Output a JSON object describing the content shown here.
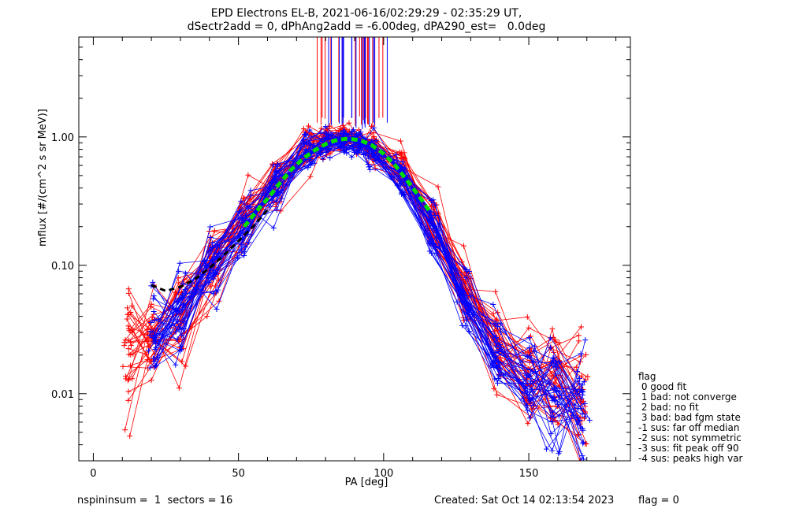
{
  "header": {
    "title_line1": "EPD Electrons EL-B, 2021-06-16/02:29:29 - 02:35:29 UT,",
    "title_line2": "dSectr2add = 0, dPhAng2add = -6.00deg, dPA290_est=   0.0deg"
  },
  "footer": {
    "left": "nspininsum =  1  sectors = 16",
    "created": "Created: Sat Oct 14 02:13:54 2023",
    "flag": "flag = 0"
  },
  "legend": {
    "title": "flag",
    "items": [
      " 0 good fit",
      " 1 bad: not converge",
      " 2 bad: no fit",
      " 3 bad: bad fgm state",
      "-1 sus: far off median",
      "-2 sus: not symmetric",
      "-3 sus: fit peak off 90",
      "-4 sus: peaks high var"
    ]
  },
  "colors": {
    "series_a": "#ff0000",
    "series_b": "#0000ff",
    "fit_median": "#00dd00",
    "fit_dashed": "#000000"
  },
  "chart_data": {
    "type": "line",
    "xlabel": "PA [deg]",
    "ylabel": "mflux [#/(cm^2 s sr MeV)]",
    "xlim": [
      -5,
      185
    ],
    "ylim": [
      0.003,
      6
    ],
    "yscale": "log",
    "xticks": [
      0,
      50,
      100,
      150
    ],
    "yticks": [
      0.01,
      0.1,
      1.0
    ],
    "ytick_labels": [
      "0.01",
      "0.10",
      "1.00"
    ],
    "grid": false,
    "peak_pa": 88,
    "spike_pa_range": [
      74,
      102
    ],
    "series": [
      {
        "color_key": "series_a",
        "pa": [
          12,
          20,
          30,
          41,
          52,
          63,
          74,
          80,
          86,
          91,
          96,
          106,
          117,
          128,
          139,
          150,
          159,
          168
        ],
        "median": [
          0.02,
          0.027,
          0.04,
          0.1,
          0.22,
          0.47,
          0.8,
          0.95,
          1.0,
          0.95,
          0.85,
          0.55,
          0.23,
          0.065,
          0.025,
          0.015,
          0.012,
          0.009
        ]
      },
      {
        "color_key": "series_b",
        "pa": [
          21,
          30,
          41,
          52,
          63,
          74,
          80,
          86,
          91,
          96,
          106,
          117,
          128,
          139,
          150,
          159,
          168
        ],
        "median": [
          0.03,
          0.045,
          0.1,
          0.2,
          0.42,
          0.75,
          0.88,
          0.92,
          0.9,
          0.8,
          0.5,
          0.18,
          0.05,
          0.022,
          0.014,
          0.011,
          0.009
        ]
      }
    ],
    "fit_median": {
      "pa": [
        52,
        56,
        60,
        64,
        68,
        72,
        76,
        80,
        84,
        88,
        92,
        96,
        100,
        104,
        108,
        112,
        116
      ],
      "flux": [
        0.2,
        0.26,
        0.33,
        0.43,
        0.55,
        0.67,
        0.78,
        0.88,
        0.95,
        0.97,
        0.94,
        0.86,
        0.74,
        0.6,
        0.46,
        0.35,
        0.26
      ]
    },
    "fit_dashed": {
      "pa": [
        20,
        25,
        30,
        35,
        40,
        45,
        50,
        55,
        60
      ],
      "flux": [
        0.07,
        0.063,
        0.068,
        0.078,
        0.095,
        0.12,
        0.155,
        0.2,
        0.27
      ]
    }
  }
}
